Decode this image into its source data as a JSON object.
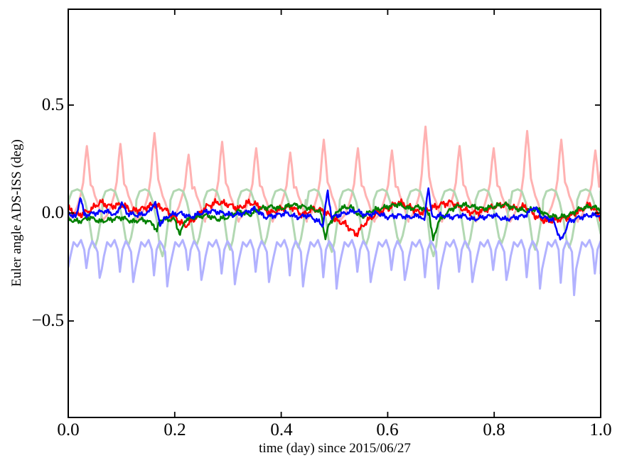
{
  "figure": {
    "background": "#ffffff",
    "axis_color": "#000000"
  },
  "chart_data": {
    "type": "line",
    "title": "",
    "xlabel": "time (day) since 2015/06/27",
    "ylabel": "Euler angle ADS-ISS (deg)",
    "xlim": [
      0.0,
      1.0
    ],
    "ylim": [
      -0.947,
      0.944
    ],
    "xticks": [
      0.0,
      0.2,
      0.4,
      0.6,
      0.8,
      1.0
    ],
    "xtick_labels": [
      "0.0",
      "0.2",
      "0.4",
      "0.6",
      "0.8",
      "1.0"
    ],
    "yticks": [
      0.5,
      0.0,
      -0.5
    ],
    "ytick_labels": [
      "0.5",
      "0.0",
      "−0.5"
    ],
    "grid": false,
    "legend": null,
    "orbital_period_day": 0.0637,
    "peak_times": [
      0.035,
      0.098,
      0.162,
      0.226,
      0.289,
      0.353,
      0.417,
      0.48,
      0.544,
      0.608,
      0.671,
      0.735,
      0.799,
      0.862,
      0.926,
      0.99
    ],
    "series": [
      {
        "name": "pale-red-filtered",
        "color": "#ffb2b2",
        "width": 3,
        "kind": "periodic",
        "heights": [
          0.31,
          0.32,
          0.37,
          0.27,
          0.33,
          0.3,
          0.28,
          0.34,
          0.3,
          0.29,
          0.4,
          0.31,
          0.3,
          0.38,
          0.34,
          0.29
        ],
        "template": [
          [
            -0.032,
            -0.03,
            0
          ],
          [
            -0.025,
            -0.01,
            0
          ],
          [
            -0.018,
            0.03,
            0
          ],
          [
            -0.012,
            0.08,
            0
          ],
          [
            -0.007,
            0,
            0.45
          ],
          [
            -0.003,
            0,
            0.8
          ],
          [
            0,
            0,
            1
          ],
          [
            0.003,
            0,
            0.78
          ],
          [
            0.007,
            0,
            0.42
          ],
          [
            0.011,
            0.12,
            0
          ],
          [
            0.015,
            0.08,
            0
          ],
          [
            0.02,
            0.05,
            0
          ],
          [
            0.026,
            0,
            0
          ],
          [
            0.031,
            -0.04,
            0
          ]
        ],
        "start": [
          0,
          -0.02
        ],
        "end": [
          1,
          0.19
        ]
      },
      {
        "name": "pale-green-filtered",
        "color": "#b2d8b2",
        "width": 3,
        "kind": "periodic",
        "heights": [
          0.16,
          0.15,
          0.2,
          0.15,
          0.17,
          0.15,
          0.16,
          0.18,
          0.15,
          0.14,
          0.2,
          0.16,
          0.14,
          0.17,
          0.16,
          0.12
        ],
        "template": [
          [
            -0.034,
            0.06,
            0
          ],
          [
            -0.028,
            0.1,
            0
          ],
          [
            -0.018,
            0.11,
            0
          ],
          [
            -0.01,
            0.1,
            0
          ],
          [
            -0.003,
            0.05,
            0
          ],
          [
            0.004,
            -0.03,
            0
          ],
          [
            0.01,
            0,
            -0.8
          ],
          [
            0.015,
            0,
            -1
          ],
          [
            0.02,
            0,
            -0.75
          ],
          [
            0.025,
            -0.05,
            0
          ],
          [
            0.029,
            0.01,
            0
          ]
        ],
        "start": [
          0,
          0.03
        ],
        "end": [
          1,
          0.1
        ]
      },
      {
        "name": "pale-blue-filtered",
        "color": "#b2b2ff",
        "width": 3,
        "kind": "periodic",
        "heights": [
          0.3,
          0.32,
          0.34,
          0.31,
          0.33,
          0.32,
          0.34,
          0.35,
          0.32,
          0.31,
          0.35,
          0.32,
          0.31,
          0.35,
          0.38,
          0.33
        ],
        "template": [
          [
            -0.031,
            -0.2,
            0
          ],
          [
            -0.025,
            -0.135,
            0
          ],
          [
            -0.018,
            -0.155,
            0
          ],
          [
            -0.011,
            -0.125,
            0
          ],
          [
            -0.005,
            -0.17,
            0
          ],
          [
            -0.001,
            0,
            -0.85
          ],
          [
            0.004,
            -0.17,
            0
          ],
          [
            0.01,
            -0.13,
            0
          ],
          [
            0.015,
            -0.15,
            0
          ],
          [
            0.02,
            -0.18,
            0
          ],
          [
            0.024,
            0,
            -1
          ],
          [
            0.028,
            -0.26,
            0
          ]
        ],
        "start": [
          0,
          -0.25
        ],
        "end": [
          1,
          -0.28
        ]
      },
      {
        "name": "red-raw",
        "color": "#ff0000",
        "width": 2.5,
        "kind": "noisy",
        "noise_amp": 0.012,
        "seed": 1,
        "keypoints": [
          [
            0,
            0.02
          ],
          [
            0.02,
            -0.01
          ],
          [
            0.04,
            0.01
          ],
          [
            0.06,
            0.05
          ],
          [
            0.08,
            0.03
          ],
          [
            0.1,
            0.04
          ],
          [
            0.12,
            0.01
          ],
          [
            0.14,
            0.02
          ],
          [
            0.16,
            0.04
          ],
          [
            0.18,
            0.02
          ],
          [
            0.2,
            -0.02
          ],
          [
            0.22,
            -0.06
          ],
          [
            0.24,
            -0.02
          ],
          [
            0.26,
            0.03
          ],
          [
            0.28,
            0.05
          ],
          [
            0.3,
            0.04
          ],
          [
            0.32,
            0.02
          ],
          [
            0.34,
            0.05
          ],
          [
            0.36,
            0.03
          ],
          [
            0.38,
            0
          ],
          [
            0.4,
            0.02
          ],
          [
            0.42,
            0.03
          ],
          [
            0.44,
            -0.01
          ],
          [
            0.46,
            0.02
          ],
          [
            0.48,
            0.01
          ],
          [
            0.5,
            -0.03
          ],
          [
            0.52,
            -0.05
          ],
          [
            0.54,
            -0.1
          ],
          [
            0.56,
            -0.04
          ],
          [
            0.58,
            0
          ],
          [
            0.6,
            0.02
          ],
          [
            0.62,
            0.05
          ],
          [
            0.64,
            0.03
          ],
          [
            0.66,
            0
          ],
          [
            0.68,
            0.02
          ],
          [
            0.7,
            0.04
          ],
          [
            0.72,
            0.05
          ],
          [
            0.74,
            0.02
          ],
          [
            0.76,
            0
          ],
          [
            0.78,
            0.01
          ],
          [
            0.8,
            0.03
          ],
          [
            0.82,
            0.04
          ],
          [
            0.84,
            0.02
          ],
          [
            0.86,
            0.03
          ],
          [
            0.88,
            -0.02
          ],
          [
            0.9,
            -0.04
          ],
          [
            0.92,
            -0.03
          ],
          [
            0.94,
            -0.02
          ],
          [
            0.96,
            0.01
          ],
          [
            0.98,
            0.04
          ],
          [
            1,
            -0.02
          ]
        ]
      },
      {
        "name": "green-raw",
        "color": "#008000",
        "width": 2.5,
        "kind": "noisy",
        "noise_amp": 0.009,
        "seed": 2,
        "keypoints": [
          [
            0,
            -0.03
          ],
          [
            0.02,
            -0.04
          ],
          [
            0.04,
            -0.02
          ],
          [
            0.06,
            -0.04
          ],
          [
            0.08,
            -0.03
          ],
          [
            0.1,
            -0.02
          ],
          [
            0.12,
            -0.04
          ],
          [
            0.14,
            -0.03
          ],
          [
            0.16,
            -0.05
          ],
          [
            0.166,
            -0.09
          ],
          [
            0.172,
            -0.03
          ],
          [
            0.2,
            -0.03
          ],
          [
            0.21,
            -0.1
          ],
          [
            0.22,
            -0.03
          ],
          [
            0.24,
            -0.02
          ],
          [
            0.26,
            -0.01
          ],
          [
            0.28,
            -0.03
          ],
          [
            0.3,
            -0.02
          ],
          [
            0.32,
            0.01
          ],
          [
            0.34,
            -0.01
          ],
          [
            0.36,
            0.02
          ],
          [
            0.38,
            0.03
          ],
          [
            0.4,
            0.02
          ],
          [
            0.42,
            0.04
          ],
          [
            0.44,
            0.03
          ],
          [
            0.46,
            0.02
          ],
          [
            0.475,
            0
          ],
          [
            0.483,
            -0.12
          ],
          [
            0.49,
            -0.05
          ],
          [
            0.51,
            0.02
          ],
          [
            0.53,
            0.03
          ],
          [
            0.55,
            -0.02
          ],
          [
            0.57,
            0.01
          ],
          [
            0.6,
            0.03
          ],
          [
            0.62,
            0.04
          ],
          [
            0.64,
            0.02
          ],
          [
            0.66,
            0.03
          ],
          [
            0.678,
            0
          ],
          [
            0.685,
            -0.13
          ],
          [
            0.695,
            -0.04
          ],
          [
            0.72,
            0.02
          ],
          [
            0.74,
            0.04
          ],
          [
            0.76,
            0.03
          ],
          [
            0.78,
            0.02
          ],
          [
            0.8,
            0.03
          ],
          [
            0.82,
            0.04
          ],
          [
            0.84,
            0.02
          ],
          [
            0.86,
            0.01
          ],
          [
            0.88,
            0.02
          ],
          [
            0.9,
            -0.01
          ],
          [
            0.92,
            -0.02
          ],
          [
            0.94,
            -0.01
          ],
          [
            0.96,
            0.02
          ],
          [
            0.98,
            0.03
          ],
          [
            1,
            0.02
          ]
        ]
      },
      {
        "name": "blue-raw",
        "color": "#0000ff",
        "width": 2.5,
        "kind": "noisy",
        "noise_amp": 0.009,
        "seed": 3,
        "keypoints": [
          [
            0,
            0
          ],
          [
            0.015,
            -0.02
          ],
          [
            0.023,
            0.08
          ],
          [
            0.03,
            -0.01
          ],
          [
            0.05,
            0
          ],
          [
            0.07,
            0.01
          ],
          [
            0.09,
            -0.01
          ],
          [
            0.1,
            0.05
          ],
          [
            0.11,
            0
          ],
          [
            0.13,
            -0.01
          ],
          [
            0.15,
            0
          ],
          [
            0.163,
            0.05
          ],
          [
            0.172,
            -0.05
          ],
          [
            0.19,
            -0.01
          ],
          [
            0.21,
            0
          ],
          [
            0.23,
            -0.02
          ],
          [
            0.25,
            0
          ],
          [
            0.27,
            0.01
          ],
          [
            0.29,
            0
          ],
          [
            0.31,
            -0.01
          ],
          [
            0.33,
            0
          ],
          [
            0.35,
            0.02
          ],
          [
            0.37,
            -0.02
          ],
          [
            0.39,
            -0.01
          ],
          [
            0.41,
            0
          ],
          [
            0.43,
            -0.02
          ],
          [
            0.45,
            -0.01
          ],
          [
            0.47,
            -0.04
          ],
          [
            0.478,
            -0.06
          ],
          [
            0.487,
            0.1
          ],
          [
            0.495,
            -0.02
          ],
          [
            0.52,
            0
          ],
          [
            0.54,
            0.01
          ],
          [
            0.56,
            -0.01
          ],
          [
            0.58,
            0
          ],
          [
            0.6,
            -0.02
          ],
          [
            0.62,
            -0.01
          ],
          [
            0.64,
            -0.02
          ],
          [
            0.66,
            -0.01
          ],
          [
            0.669,
            -0.04
          ],
          [
            0.676,
            0.13
          ],
          [
            0.683,
            -0.02
          ],
          [
            0.7,
            -0.01
          ],
          [
            0.72,
            -0.02
          ],
          [
            0.74,
            -0.01
          ],
          [
            0.76,
            -0.03
          ],
          [
            0.78,
            -0.02
          ],
          [
            0.8,
            -0.01
          ],
          [
            0.82,
            -0.03
          ],
          [
            0.84,
            -0.02
          ],
          [
            0.86,
            -0.01
          ],
          [
            0.875,
            0.03
          ],
          [
            0.89,
            -0.02
          ],
          [
            0.91,
            -0.03
          ],
          [
            0.926,
            -0.13
          ],
          [
            0.94,
            -0.04
          ],
          [
            0.96,
            -0.02
          ],
          [
            0.98,
            -0.01
          ],
          [
            1,
            -0.01
          ]
        ]
      }
    ]
  }
}
